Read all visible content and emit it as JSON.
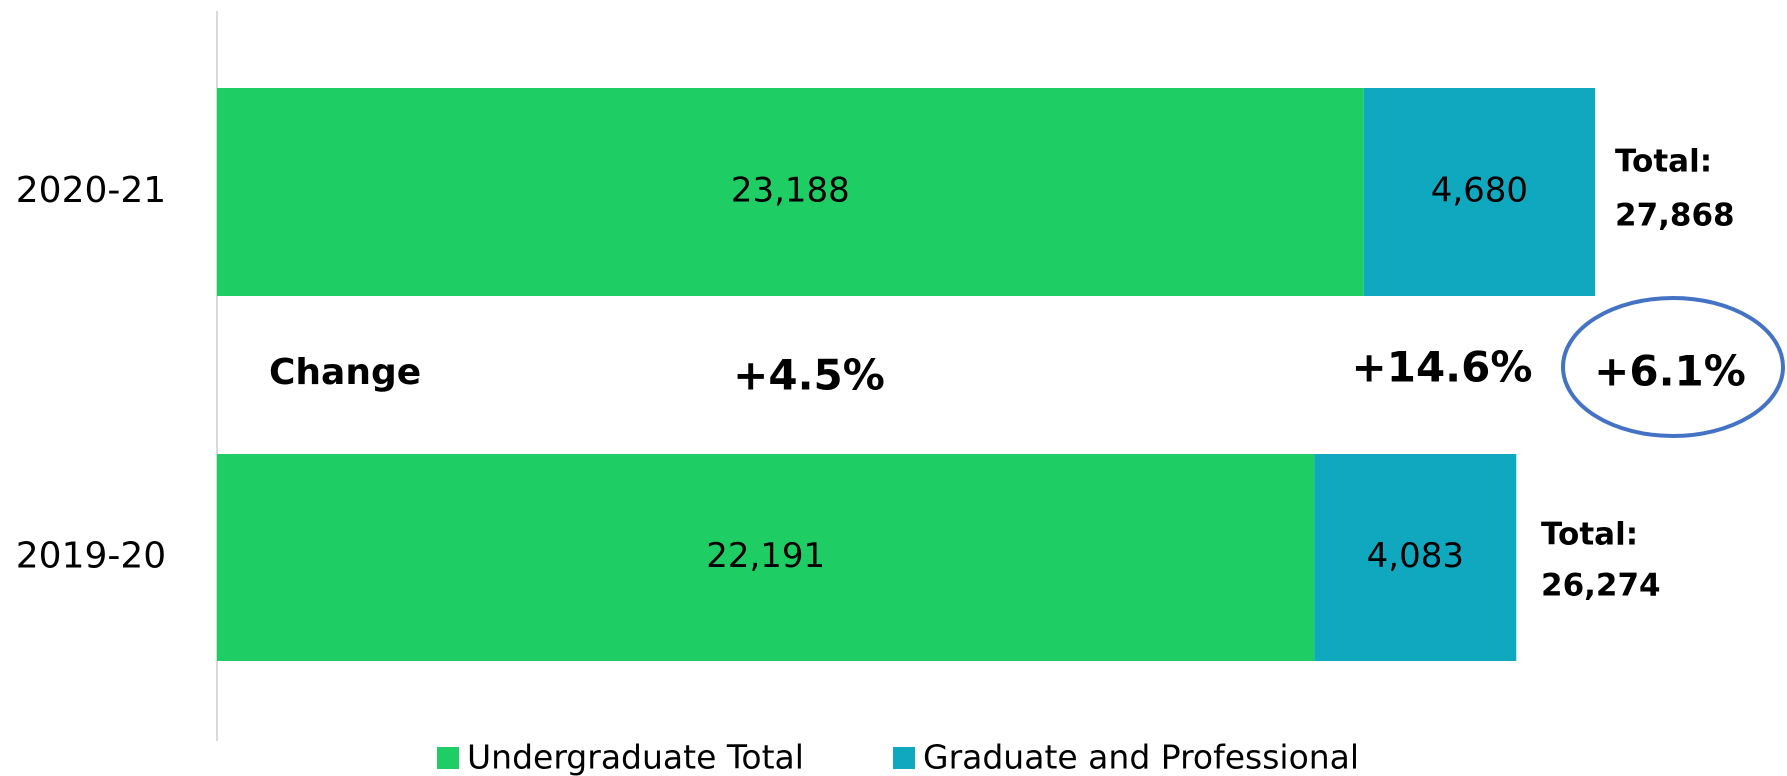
{
  "chart_data": {
    "type": "stacked-barh",
    "categories": [
      "2020-21",
      "2019-20"
    ],
    "series": [
      {
        "name": "Undergraduate Total",
        "color": "#1ecd64",
        "values": [
          23188,
          22191
        ],
        "value_labels": [
          "23,188",
          "22,191"
        ]
      },
      {
        "name": "Graduate and Professional",
        "color": "#0fa8be",
        "values": [
          4680,
          4083
        ],
        "value_labels": [
          "4,680",
          "4,083"
        ]
      }
    ],
    "xlim": [
      0,
      31000
    ],
    "total_label": "Total:",
    "totals": [
      "27,868",
      "26,274"
    ],
    "change_label": "Change",
    "changes": [
      "+4.5%",
      "+14.6%",
      "+6.1%"
    ],
    "highlight_color": "#4472c4",
    "legend": "bottom"
  }
}
